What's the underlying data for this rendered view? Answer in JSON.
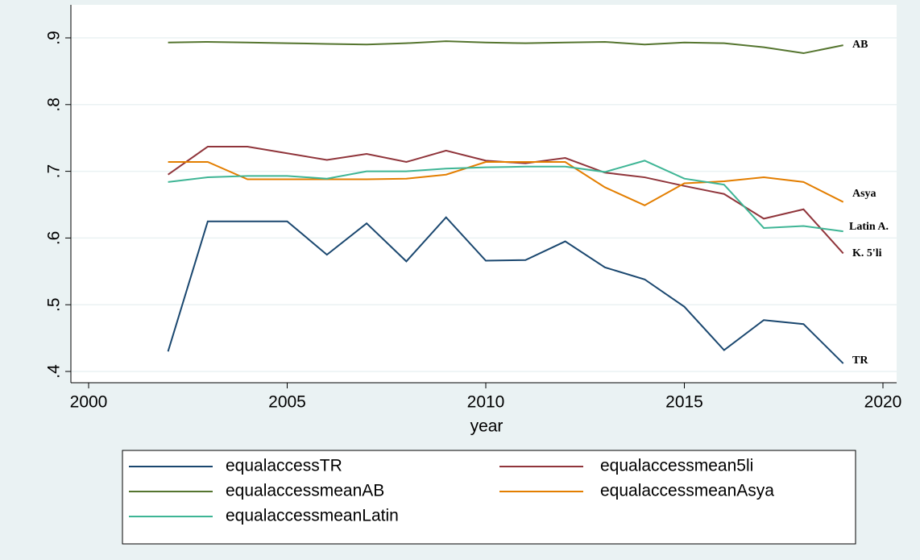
{
  "chart_data": {
    "type": "line",
    "x_label": "year",
    "x": [
      2002,
      2003,
      2004,
      2005,
      2006,
      2007,
      2008,
      2009,
      2010,
      2011,
      2012,
      2013,
      2014,
      2015,
      2016,
      2017,
      2018,
      2019
    ],
    "series": [
      {
        "name": "equalaccessTR",
        "color": "#1a476f",
        "values": [
          0.43,
          0.625,
          0.625,
          0.625,
          0.575,
          0.622,
          0.565,
          0.631,
          0.566,
          0.567,
          0.595,
          0.556,
          0.538,
          0.497,
          0.432,
          0.477,
          0.471,
          0.412
        ]
      },
      {
        "name": "equalaccessmean5li",
        "color": "#90353b",
        "values": [
          0.695,
          0.737,
          0.737,
          0.727,
          0.717,
          0.726,
          0.714,
          0.731,
          0.716,
          0.712,
          0.72,
          0.698,
          0.691,
          0.678,
          0.666,
          0.629,
          0.643,
          0.577
        ]
      },
      {
        "name": "equalaccessmeanAB",
        "color": "#55752f",
        "values": [
          0.893,
          0.894,
          0.893,
          0.892,
          0.891,
          0.89,
          0.892,
          0.895,
          0.893,
          0.892,
          0.893,
          0.894,
          0.89,
          0.893,
          0.892,
          0.886,
          0.877,
          0.889
        ]
      },
      {
        "name": "equalaccessmeanAsya",
        "color": "#e37e00",
        "values": [
          0.714,
          0.714,
          0.688,
          0.688,
          0.688,
          0.688,
          0.689,
          0.695,
          0.714,
          0.714,
          0.714,
          0.676,
          0.649,
          0.682,
          0.685,
          0.691,
          0.684,
          0.654
        ]
      },
      {
        "name": "equalaccessmeanLatin",
        "color": "#3eb595",
        "values": [
          0.684,
          0.691,
          0.693,
          0.693,
          0.689,
          0.7,
          0.7,
          0.704,
          0.706,
          0.707,
          0.707,
          0.699,
          0.716,
          0.689,
          0.68,
          0.615,
          0.618,
          0.61
        ]
      }
    ],
    "annotations": [
      "AB",
      "Asya",
      "Latin A.",
      "K. 5'li",
      "TR"
    ],
    "xlim": [
      2000,
      2020
    ],
    "xticks": [
      2000,
      2005,
      2010,
      2015,
      2020
    ],
    "ylim": [
      0.4,
      0.9
    ],
    "yticks": [
      {
        "value": 0.4,
        "label": ".4"
      },
      {
        "value": 0.5,
        "label": ".5"
      },
      {
        "value": 0.6,
        "label": ".6"
      },
      {
        "value": 0.7,
        "label": ".7"
      },
      {
        "value": 0.8,
        "label": ".8"
      },
      {
        "value": 0.9,
        "label": ".9"
      }
    ],
    "grid": true
  }
}
